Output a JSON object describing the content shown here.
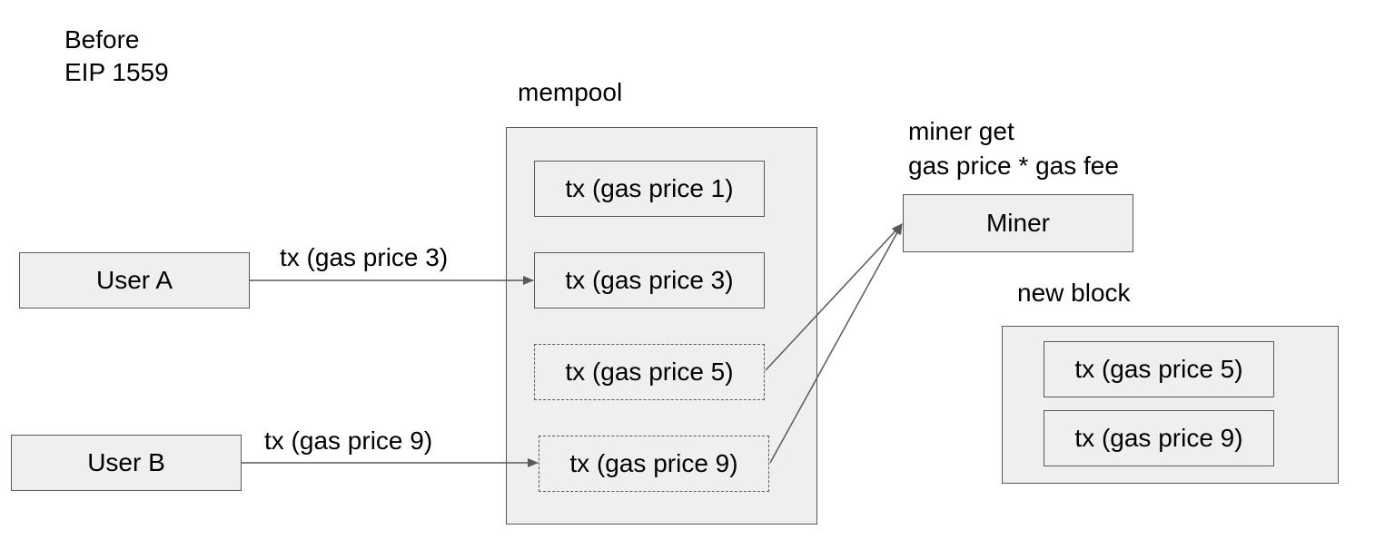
{
  "title": {
    "line1": "Before",
    "line2": "EIP 1559"
  },
  "users": {
    "a": {
      "label": "User A",
      "tx_label": "tx (gas price 3)"
    },
    "b": {
      "label": "User B",
      "tx_label": "tx (gas price 9)"
    }
  },
  "mempool": {
    "label": "mempool",
    "txs": [
      {
        "label": "tx (gas price 1)",
        "selected": false
      },
      {
        "label": "tx (gas price 3)",
        "selected": false
      },
      {
        "label": "tx (gas price 5)",
        "selected": true
      },
      {
        "label": "tx (gas price 9)",
        "selected": true
      }
    ]
  },
  "miner": {
    "label": "Miner",
    "note_line1": "miner get",
    "note_line2": "gas price * gas fee"
  },
  "new_block": {
    "label": "new block",
    "txs": [
      {
        "label": "tx (gas price 5)"
      },
      {
        "label": "tx (gas price 9)"
      }
    ]
  },
  "colors": {
    "box_fill": "#efefef",
    "stroke": "#595959",
    "text": "#000000"
  }
}
